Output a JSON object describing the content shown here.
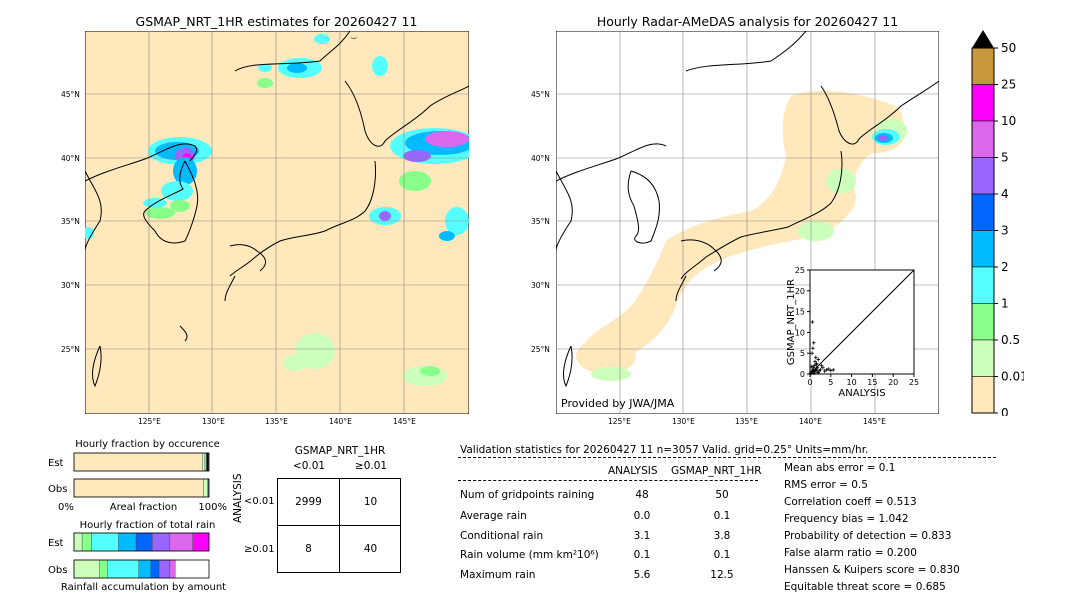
{
  "left_map": {
    "title": "GSMAP_NRT_1HR estimates for 20260427 11",
    "lat_labels": [
      "45°N",
      "40°N",
      "35°N",
      "30°N",
      "25°N"
    ],
    "lon_labels": [
      "125°E",
      "130°E",
      "135°E",
      "140°E",
      "145°E"
    ]
  },
  "right_map": {
    "title": "Hourly Radar-AMeDAS analysis for 20260427 11",
    "lat_labels": [
      "45°N",
      "40°N",
      "35°N",
      "30°N",
      "25°N"
    ],
    "lon_labels": [
      "125°E",
      "130°E",
      "135°E",
      "140°E",
      "145°E"
    ],
    "credit": "Provided by JWA/JMA"
  },
  "colorbar": {
    "labels": [
      "50",
      "25",
      "10",
      "5",
      "4",
      "3",
      "2",
      "1",
      "0.5",
      "0.01",
      "0"
    ],
    "colors": [
      "#c8963c",
      "#ff00ff",
      "#dd66ee",
      "#9966ff",
      "#0066ff",
      "#00bbff",
      "#55ffff",
      "#88ff88",
      "#ccffbb",
      "#ffe8bb"
    ],
    "extend_color": "#000000"
  },
  "chart_data": [
    {
      "type": "scatter",
      "title": "",
      "xlabel": "ANALYSIS",
      "ylabel": "GSMAP_NRT_1HR",
      "xlim": [
        0,
        25
      ],
      "ylim": [
        0,
        25
      ],
      "x_ticks": [
        "0",
        "5",
        "10",
        "15",
        "20",
        "25"
      ],
      "y_ticks": [
        "0",
        "5",
        "10",
        "15",
        "20",
        "25"
      ],
      "points": [
        [
          0.1,
          0.1
        ],
        [
          0.2,
          0.3
        ],
        [
          0.3,
          0.2
        ],
        [
          0.4,
          0.5
        ],
        [
          0.5,
          0.3
        ],
        [
          0.6,
          1.0
        ],
        [
          0.7,
          0.4
        ],
        [
          0.8,
          1.5
        ],
        [
          0.9,
          0.6
        ],
        [
          1.0,
          2.0
        ],
        [
          1.1,
          0.8
        ],
        [
          1.2,
          3.0
        ],
        [
          1.3,
          1.0
        ],
        [
          1.4,
          4.0
        ],
        [
          1.5,
          1.2
        ],
        [
          1.6,
          2.5
        ],
        [
          1.7,
          0.5
        ],
        [
          1.8,
          1.5
        ],
        [
          2.0,
          3.5
        ],
        [
          2.2,
          0.8
        ],
        [
          2.5,
          1.0
        ],
        [
          2.8,
          2.0
        ],
        [
          3.1,
          1.5
        ],
        [
          3.5,
          0.7
        ],
        [
          4.0,
          1.0
        ],
        [
          4.5,
          1.2
        ],
        [
          5.0,
          0.8
        ],
        [
          5.6,
          1.0
        ],
        [
          0.5,
          5.0
        ],
        [
          0.7,
          6.2
        ],
        [
          0.9,
          7.5
        ],
        [
          0.6,
          12.5
        ],
        [
          0.3,
          1.8
        ],
        [
          1.0,
          0.2
        ],
        [
          2.0,
          0.3
        ],
        [
          1.5,
          2.2
        ]
      ],
      "diagonal": true
    },
    {
      "type": "bar",
      "title": "Hourly fraction by occurence",
      "categories": [
        "Est",
        "Obs"
      ],
      "xlabel": "Areal fraction",
      "x_ticks": [
        "0%",
        "100%"
      ],
      "stacked": true,
      "series": [
        {
          "name": "",
          "color": "#ffe8bb",
          "values": [
            0.95,
            0.96
          ]
        },
        {
          "name": "",
          "color": "#ccffbb",
          "values": [
            0.02,
            0.03
          ]
        },
        {
          "name": "",
          "color": "#88ff88",
          "values": [
            0.01,
            0.005
          ]
        },
        {
          "name": "",
          "color": "#55ffff",
          "values": [
            0.005,
            0.003
          ]
        },
        {
          "name": "",
          "color": "#000000",
          "values": [
            0.01,
            0.0
          ]
        }
      ]
    },
    {
      "type": "bar",
      "title": "Hourly fraction of total rain",
      "categories": [
        "Est",
        "Obs"
      ],
      "xlabel": "Rainfall accumulation by amount",
      "stacked": true,
      "series": [
        {
          "name": "",
          "color": "#ccffbb",
          "values": [
            0.06,
            0.19
          ]
        },
        {
          "name": "",
          "color": "#88ff88",
          "values": [
            0.07,
            0.06
          ]
        },
        {
          "name": "",
          "color": "#55ffff",
          "values": [
            0.2,
            0.23
          ]
        },
        {
          "name": "",
          "color": "#00bbff",
          "values": [
            0.13,
            0.09
          ]
        },
        {
          "name": "",
          "color": "#0066ff",
          "values": [
            0.12,
            0.06
          ]
        },
        {
          "name": "",
          "color": "#9966ff",
          "values": [
            0.13,
            0.08
          ]
        },
        {
          "name": "",
          "color": "#dd66ee",
          "values": [
            0.17,
            0.04
          ]
        },
        {
          "name": "",
          "color": "#ff00ff",
          "values": [
            0.12,
            0.0
          ]
        }
      ]
    }
  ],
  "contingency": {
    "title": "GSMAP_NRT_1HR",
    "col_labels": [
      "<0.01",
      "≥0.01"
    ],
    "row_axis_label": "ANALYSIS",
    "row_labels": [
      "<0.01",
      "≥0.01"
    ],
    "cells": [
      [
        "2999",
        "10"
      ],
      [
        "8",
        "40"
      ]
    ]
  },
  "validation": {
    "header": "Validation statistics for 20260427 11  n=3057 Valid. grid=0.25° Units=mm/hr.",
    "col_analysis": "ANALYSIS",
    "col_gsmap": "GSMAP_NRT_1HR",
    "rows": [
      {
        "label": "Num of gridpoints raining",
        "analysis": "48",
        "gsmap": "50"
      },
      {
        "label": "Average rain",
        "analysis": "0.0",
        "gsmap": "0.1"
      },
      {
        "label": "Conditional rain",
        "analysis": "3.1",
        "gsmap": "3.8"
      },
      {
        "label": "Rain volume (mm km²10⁶)",
        "analysis": "0.1",
        "gsmap": "0.1"
      },
      {
        "label": "Maximum rain",
        "analysis": "5.6",
        "gsmap": "12.5"
      }
    ],
    "scores": [
      "Mean abs error =    0.1",
      "RMS error =    0.5",
      "Correlation coeff =  0.513",
      "Frequency bias =  1.042",
      "Probability of detection =  0.833",
      "False alarm ratio =  0.200",
      "Hanssen & Kuipers score =  0.830",
      "Equitable threat score =  0.685"
    ]
  }
}
